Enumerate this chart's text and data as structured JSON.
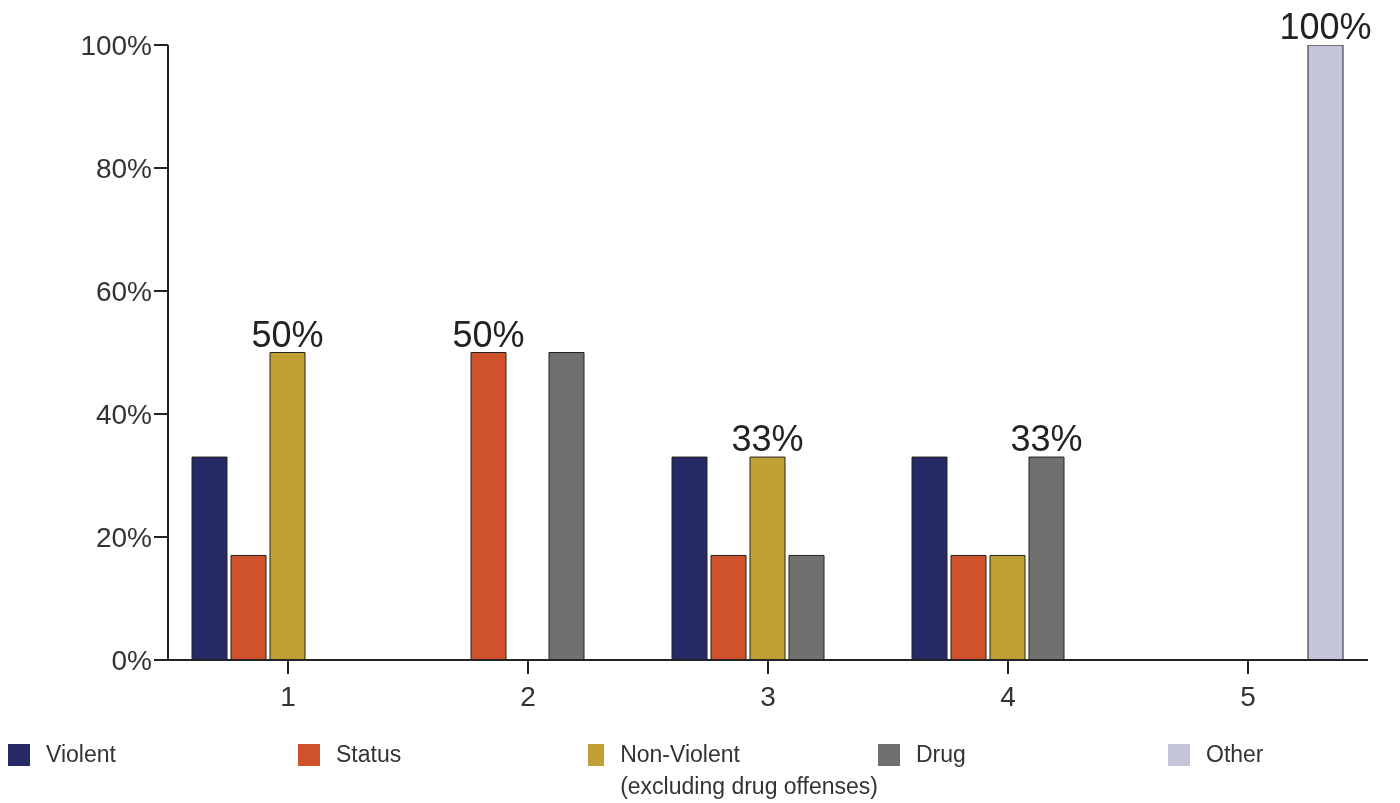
{
  "chart_data": {
    "type": "bar",
    "categories": [
      "1",
      "2",
      "3",
      "4",
      "5"
    ],
    "series": [
      {
        "name": "Violent",
        "color": "#262a66",
        "values": [
          33,
          null,
          33,
          33,
          null
        ],
        "value_labels": [
          null,
          null,
          null,
          null,
          null
        ]
      },
      {
        "name": "Status",
        "color": "#cf522c",
        "values": [
          17,
          50,
          17,
          17,
          null
        ],
        "value_labels": [
          null,
          "50%",
          null,
          null,
          null
        ]
      },
      {
        "name": "Non-Violent\n(excluding drug offenses)",
        "color": "#c0a035",
        "values": [
          50,
          null,
          33,
          17,
          null
        ],
        "value_labels": [
          "50%",
          null,
          "33%",
          null,
          null
        ]
      },
      {
        "name": "Drug",
        "color": "#6f706f",
        "values": [
          null,
          50,
          17,
          33,
          null
        ],
        "value_labels": [
          null,
          null,
          null,
          "33%",
          null
        ]
      },
      {
        "name": "Other",
        "color": "#c3c6da",
        "values": [
          null,
          null,
          null,
          null,
          100
        ],
        "value_labels": [
          null,
          null,
          null,
          null,
          "100%"
        ]
      }
    ],
    "ylim": [
      0,
      100
    ],
    "yticks": [
      {
        "value": 0,
        "label": "0%"
      },
      {
        "value": 20,
        "label": "20%"
      },
      {
        "value": 40,
        "label": "40%"
      },
      {
        "value": 60,
        "label": "60%"
      },
      {
        "value": 80,
        "label": "80%"
      },
      {
        "value": 100,
        "label": "100%"
      }
    ],
    "grid": false,
    "legend": "bottom"
  }
}
